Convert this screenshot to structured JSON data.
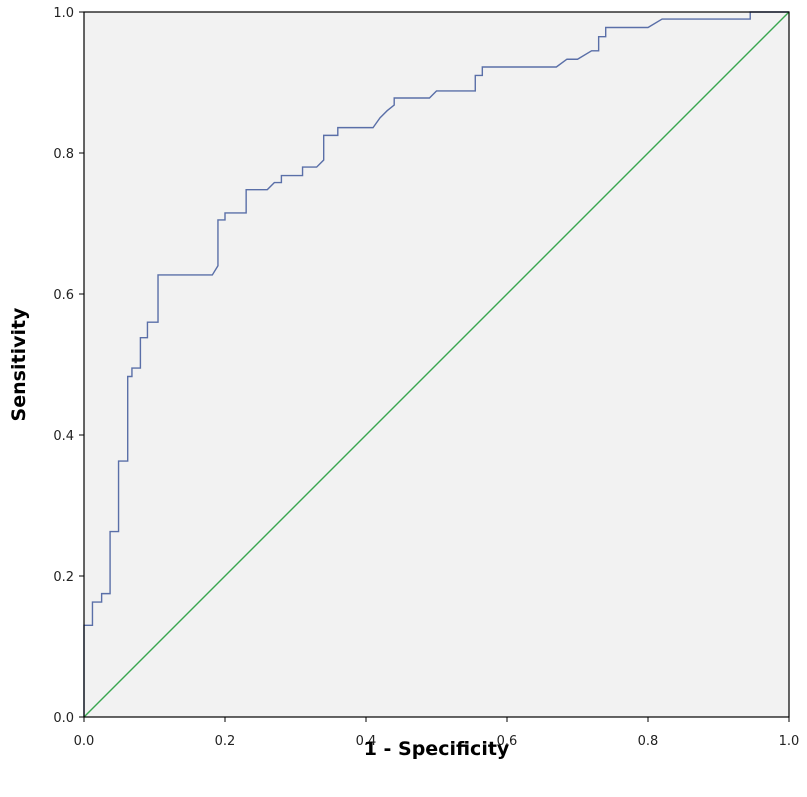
{
  "chart_data": {
    "type": "line",
    "title": "",
    "xlabel": "1 - Specificity",
    "ylabel": "Sensitivity",
    "xlim": [
      0,
      1
    ],
    "ylim": [
      0,
      1
    ],
    "x_ticks": [
      "0.0",
      "0.2",
      "0.4",
      "0.6",
      "0.8",
      "1.0"
    ],
    "y_ticks": [
      "0.0",
      "0.2",
      "0.4",
      "0.6",
      "0.8",
      "1.0"
    ],
    "grid": false,
    "legend": "none",
    "colors": {
      "background": "#f2f2f2",
      "frame": "#000000",
      "roc_line": "#5a6fa8",
      "reference_line": "#3aa650"
    },
    "series": [
      {
        "role": "roc-curve",
        "x": [
          0.0,
          0.0,
          0.012,
          0.012,
          0.025,
          0.025,
          0.037,
          0.037,
          0.049,
          0.049,
          0.062,
          0.062,
          0.068,
          0.068,
          0.08,
          0.08,
          0.09,
          0.09,
          0.105,
          0.105,
          0.182,
          0.19,
          0.19,
          0.2,
          0.2,
          0.23,
          0.23,
          0.26,
          0.27,
          0.28,
          0.28,
          0.3,
          0.31,
          0.31,
          0.33,
          0.34,
          0.34,
          0.36,
          0.36,
          0.41,
          0.42,
          0.43,
          0.44,
          0.44,
          0.49,
          0.5,
          0.555,
          0.555,
          0.565,
          0.565,
          0.67,
          0.685,
          0.7,
          0.72,
          0.73,
          0.73,
          0.74,
          0.74,
          0.8,
          0.82,
          0.945,
          0.945,
          1.0
        ],
        "y": [
          0.0,
          0.13,
          0.13,
          0.163,
          0.163,
          0.175,
          0.175,
          0.263,
          0.263,
          0.363,
          0.363,
          0.483,
          0.483,
          0.495,
          0.495,
          0.538,
          0.538,
          0.56,
          0.56,
          0.627,
          0.627,
          0.64,
          0.705,
          0.705,
          0.715,
          0.715,
          0.748,
          0.748,
          0.758,
          0.758,
          0.768,
          0.768,
          0.768,
          0.78,
          0.78,
          0.79,
          0.825,
          0.825,
          0.836,
          0.836,
          0.85,
          0.86,
          0.868,
          0.878,
          0.878,
          0.888,
          0.888,
          0.91,
          0.91,
          0.922,
          0.922,
          0.933,
          0.933,
          0.945,
          0.945,
          0.965,
          0.965,
          0.978,
          0.978,
          0.99,
          0.99,
          1.0,
          1.0
        ]
      },
      {
        "role": "reference-diagonal",
        "x": [
          0,
          1
        ],
        "y": [
          0,
          1
        ]
      }
    ]
  }
}
